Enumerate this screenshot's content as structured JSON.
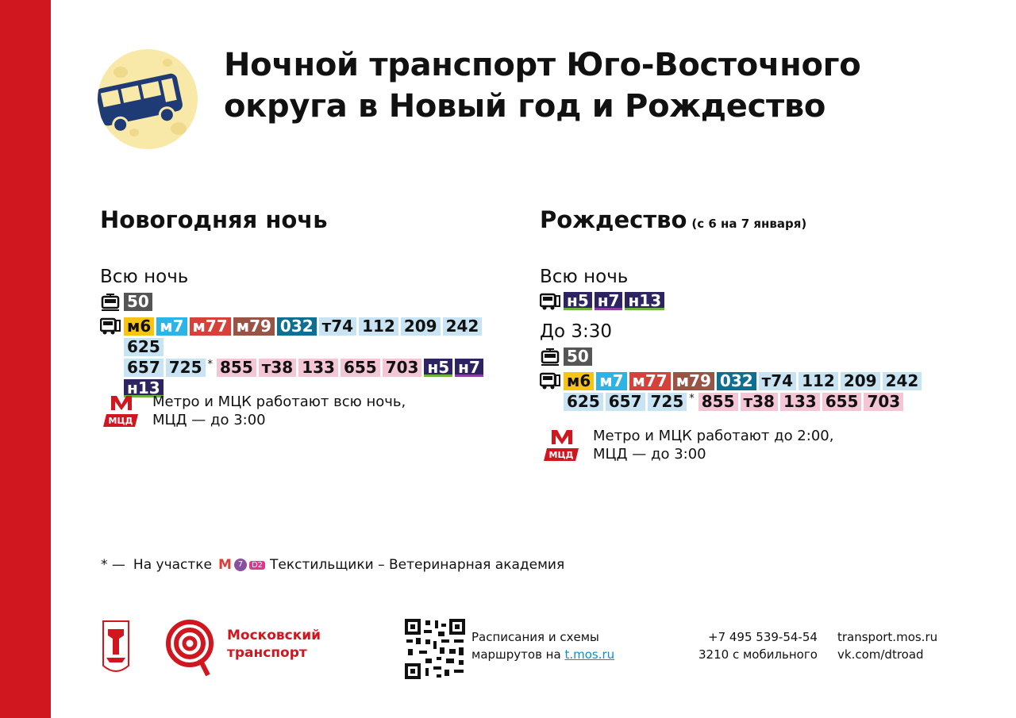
{
  "title_line1": "Ночной транспорт Юго-Восточного",
  "title_line2": "округа в Новый год и Рождество",
  "left": {
    "heading": "Новогодняя ночь",
    "all_night_label": "Всю ночь",
    "tram": [
      "50"
    ],
    "bus_line1": [
      "м6",
      "м7",
      "м77",
      "м79",
      "032",
      "т74",
      "112",
      "209",
      "242",
      "625"
    ],
    "bus_line2": [
      "657",
      "725"
    ],
    "bus_line2b": [
      "855",
      "т38",
      "133",
      "655",
      "703",
      "н5",
      "н7"
    ],
    "bus_line3": [
      "н13"
    ],
    "star": "*",
    "metro_line1": "Метро и МЦК работают всю ночь,",
    "metro_line2": "МЦД — до 3:00"
  },
  "right": {
    "heading": "Рождество",
    "heading_sub": "(с 6 на 7 января)",
    "all_night_label": "Всю ночь",
    "night_bus": [
      "н5",
      "н7",
      "н13"
    ],
    "until_label": "До 3:30",
    "tram": [
      "50"
    ],
    "bus_line1": [
      "м6",
      "м7",
      "м77",
      "м79",
      "032",
      "т74",
      "112",
      "209",
      "242"
    ],
    "bus_line2": [
      "625",
      "657",
      "725"
    ],
    "bus_line2b": [
      "855",
      "т38",
      "133",
      "655",
      "703"
    ],
    "star": "*",
    "metro_line1": "Метро и МЦК работают до 2:00,",
    "metro_line2": "МЦД — до 3:00"
  },
  "metro_logo_text": "МЦД",
  "footnote": {
    "mark": "* —",
    "prefix": "На участке",
    "m_letter": "М",
    "line7": "7",
    "d2": "D2",
    "text": "Текстильщики – Ветеринарная академия"
  },
  "footer": {
    "brand_line1": "Московский",
    "brand_line2": "транспорт",
    "qr_line1": "Расписания и схемы",
    "qr_line2_prefix": "маршрутов на",
    "qr_link": "t.mos.ru",
    "phone": "+7 495 539-54-54",
    "phone_short": "3210 с мобильного",
    "site": "transport.mos.ru",
    "vk": "vk.com/dtroad"
  },
  "colors": {
    "accent_red": "#d0161f",
    "mini": "#f6c414",
    "night": "#2d2461"
  },
  "icons": [
    "bus-moon-icon",
    "tram-icon",
    "bus-icon",
    "metro-logo-icon",
    "moscow-coat-of-arms-icon",
    "moscow-transport-logo-icon",
    "qr-code-icon"
  ]
}
